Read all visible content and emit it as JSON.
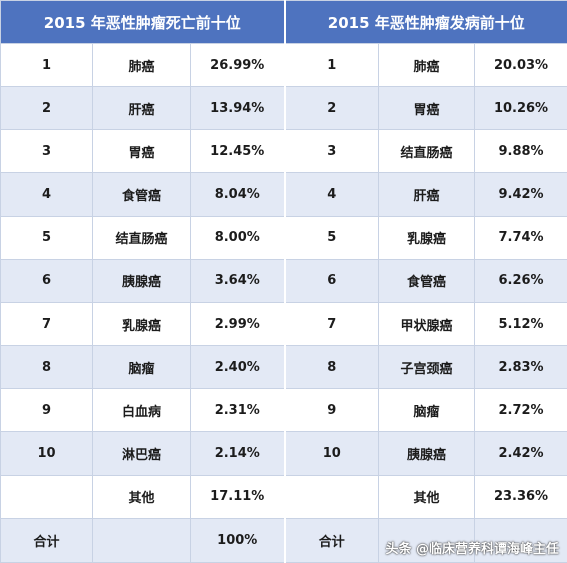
{
  "left_title": "2015 年恶性肿瘤死亡前十位",
  "right_title": "2015 年恶性肿瘤发病前十位",
  "rows": [
    {
      "l_rank": "1",
      "l_name": "肺癌",
      "l_pct": "26.99%",
      "r_rank": "1",
      "r_name": "肺癌",
      "r_pct": "20.03%"
    },
    {
      "l_rank": "2",
      "l_name": "肝癌",
      "l_pct": "13.94%",
      "r_rank": "2",
      "r_name": "胃癌",
      "r_pct": "10.26%"
    },
    {
      "l_rank": "3",
      "l_name": "胃癌",
      "l_pct": "12.45%",
      "r_rank": "3",
      "r_name": "结直肠癌",
      "r_pct": "9.88%"
    },
    {
      "l_rank": "4",
      "l_name": "食管癌",
      "l_pct": "8.04%",
      "r_rank": "4",
      "r_name": "肝癌",
      "r_pct": "9.42%"
    },
    {
      "l_rank": "5",
      "l_name": "结直肠癌",
      "l_pct": "8.00%",
      "r_rank": "5",
      "r_name": "乳腺癌",
      "r_pct": "7.74%"
    },
    {
      "l_rank": "6",
      "l_name": "胰腺癌",
      "l_pct": "3.64%",
      "r_rank": "6",
      "r_name": "食管癌",
      "r_pct": "6.26%"
    },
    {
      "l_rank": "7",
      "l_name": "乳腺癌",
      "l_pct": "2.99%",
      "r_rank": "7",
      "r_name": "甲状腺癌",
      "r_pct": "5.12%"
    },
    {
      "l_rank": "8",
      "l_name": "脑瘤",
      "l_pct": "2.40%",
      "r_rank": "8",
      "r_name": "子宫颈癌",
      "r_pct": "2.83%"
    },
    {
      "l_rank": "9",
      "l_name": "白血病",
      "l_pct": "2.31%",
      "r_rank": "9",
      "r_name": "脑瘤",
      "r_pct": "2.72%"
    },
    {
      "l_rank": "10",
      "l_name": "淋巴癌",
      "l_pct": "2.14%",
      "r_rank": "10",
      "r_name": "胰腺癌",
      "r_pct": "2.42%"
    },
    {
      "l_rank": "",
      "l_name": "其他",
      "l_pct": "17.11%",
      "r_rank": "",
      "r_name": "其他",
      "r_pct": "23.36%"
    }
  ],
  "total": {
    "l_label": "合计",
    "l_pct": "100%",
    "r_label": "合计",
    "r_pct": ""
  },
  "watermark": "头条 @临床营养科谭海峰主任",
  "colors": {
    "header": "#4e73bf",
    "alt_row": "#e3e9f5",
    "border": "#c8d2e4"
  }
}
